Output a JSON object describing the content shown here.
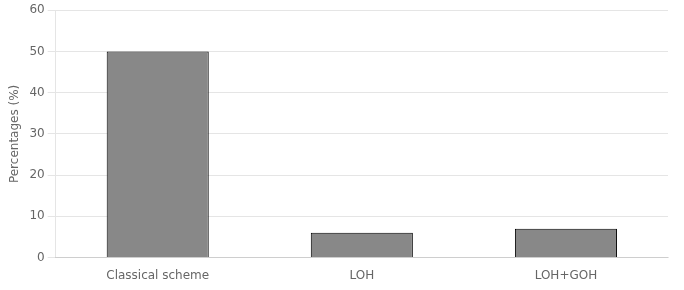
{
  "chart_data": {
    "type": "bar",
    "categories": [
      "Classical scheme",
      "LOH",
      "LOH+GOH"
    ],
    "values": [
      50,
      6,
      7
    ],
    "color": "#888888",
    "ylabel": "Percentages (%)",
    "ylim": [
      0,
      60
    ],
    "yticks": [
      0,
      10,
      20,
      30,
      40,
      50,
      60
    ],
    "grid": true
  }
}
